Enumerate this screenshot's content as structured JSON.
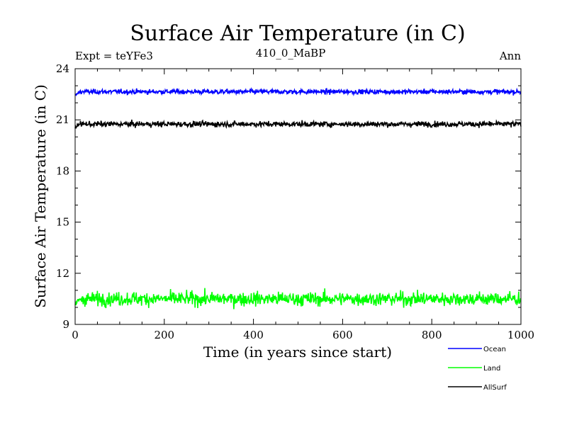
{
  "chart_data": {
    "type": "line",
    "title": "Surface Air Temperature (in C)",
    "subtitle_left": "Expt = teYFe3",
    "subtitle_center": "410_0_MaBP",
    "subtitle_right": "Ann",
    "xlabel": "Time (in years since start)",
    "ylabel": "Surface Air Temperature (in C)",
    "xlim": [
      0,
      1000
    ],
    "ylim": [
      9,
      24
    ],
    "xticks": [
      0,
      200,
      400,
      600,
      800,
      1000
    ],
    "yticks": [
      9,
      12,
      15,
      18,
      21,
      24
    ],
    "legend_position": "bottom-right-outside",
    "series": [
      {
        "name": "Ocean",
        "color": "#0000ff",
        "mean": 22.65,
        "noise": 0.07,
        "start_dip": 22.45
      },
      {
        "name": "Land",
        "color": "#00ff00",
        "mean": 10.5,
        "noise": 0.2,
        "start_dip": 10.2
      },
      {
        "name": "AllSurf",
        "color": "#000000",
        "mean": 20.75,
        "noise": 0.08,
        "start_dip": 20.55
      }
    ]
  }
}
